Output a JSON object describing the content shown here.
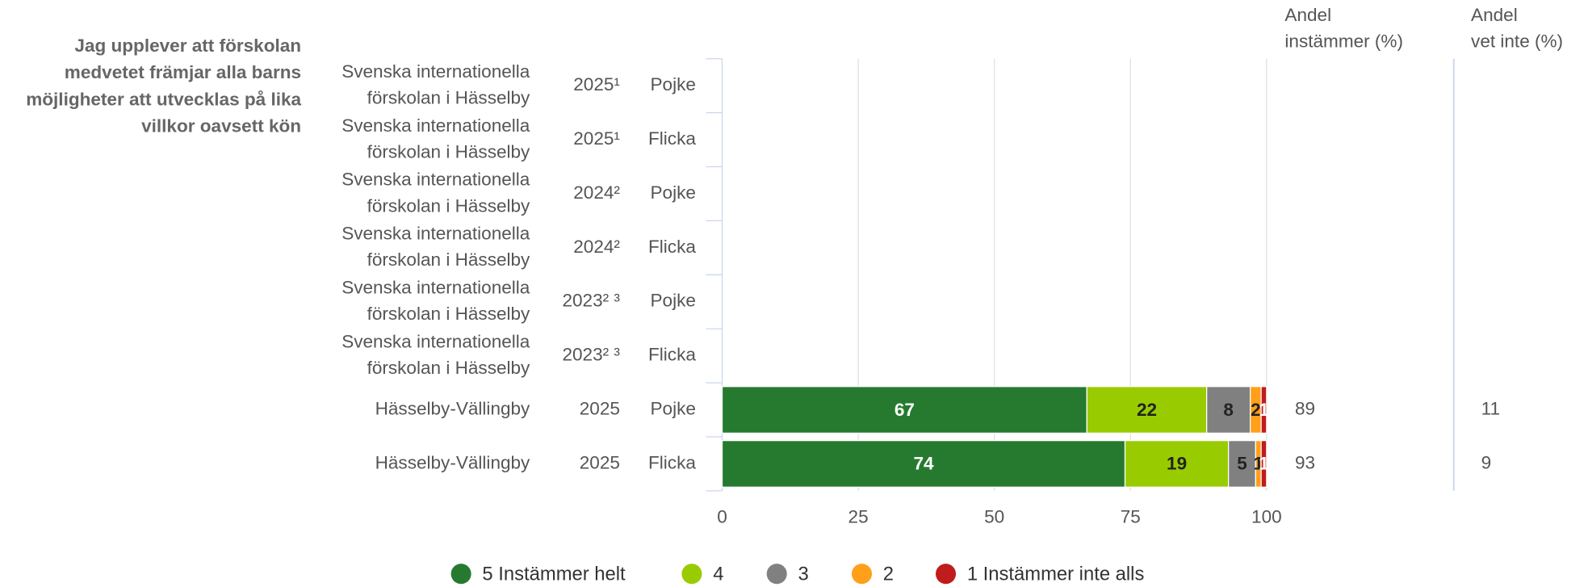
{
  "chart_data": {
    "type": "stacked-bar-horizontal",
    "question_lines": [
      "Jag upplever att förskolan",
      "medvetet främjar alla barns",
      "möjligheter att utvecklas på lika",
      "villkor oavsett kön"
    ],
    "categories": [
      [
        "Svenska internationella",
        "förskolan i Hässelby"
      ],
      [
        "Svenska internationella",
        "förskolan i Hässelby"
      ],
      [
        "Svenska internationella",
        "förskolan i Hässelby"
      ],
      [
        "Svenska internationella",
        "förskolan i Hässelby"
      ],
      [
        "Svenska internationella",
        "förskolan i Hässelby"
      ],
      [
        "Svenska internationella",
        "förskolan i Hässelby"
      ],
      [
        "Hässelby-Vällingby"
      ],
      [
        "Hässelby-Vällingby"
      ]
    ],
    "years": [
      "2025¹",
      "2025¹",
      "2024²",
      "2024²",
      "2023² ³",
      "2023² ³",
      "2025",
      "2025"
    ],
    "genders": [
      "Pojke",
      "Flicka",
      "Pojke",
      "Flicka",
      "Pojke",
      "Flicka",
      "Pojke",
      "Flicka"
    ],
    "series": [
      {
        "name": "5 Instämmer helt",
        "color": "#267a2f",
        "label_color": "#ffffff",
        "values": [
          null,
          null,
          null,
          null,
          null,
          null,
          67,
          74
        ]
      },
      {
        "name": "4",
        "color": "#99cc00",
        "label_color": "#222222",
        "values": [
          null,
          null,
          null,
          null,
          null,
          null,
          22,
          19
        ]
      },
      {
        "name": "3",
        "color": "#808080",
        "label_color": "#222222",
        "values": [
          null,
          null,
          null,
          null,
          null,
          null,
          8,
          5
        ]
      },
      {
        "name": "2",
        "color": "#ff9f1a",
        "label_color": "#222222",
        "values": [
          null,
          null,
          null,
          null,
          null,
          null,
          2,
          1
        ]
      },
      {
        "name": "1 Instämmer inte alls",
        "color": "#c01c1c",
        "label_color": "#ffffff",
        "values": [
          null,
          null,
          null,
          null,
          null,
          null,
          1,
          1
        ]
      }
    ],
    "columns": [
      {
        "header": [
          "Andel",
          "instämmer (%)"
        ],
        "values": [
          null,
          null,
          null,
          null,
          null,
          null,
          89,
          93
        ]
      },
      {
        "header": [
          "Andel",
          "vet inte (%)"
        ],
        "values": [
          null,
          null,
          null,
          null,
          null,
          null,
          11,
          9
        ]
      }
    ],
    "xlim": [
      0,
      100
    ],
    "xticks": [
      0,
      25,
      50,
      75,
      100
    ],
    "grid": true
  }
}
